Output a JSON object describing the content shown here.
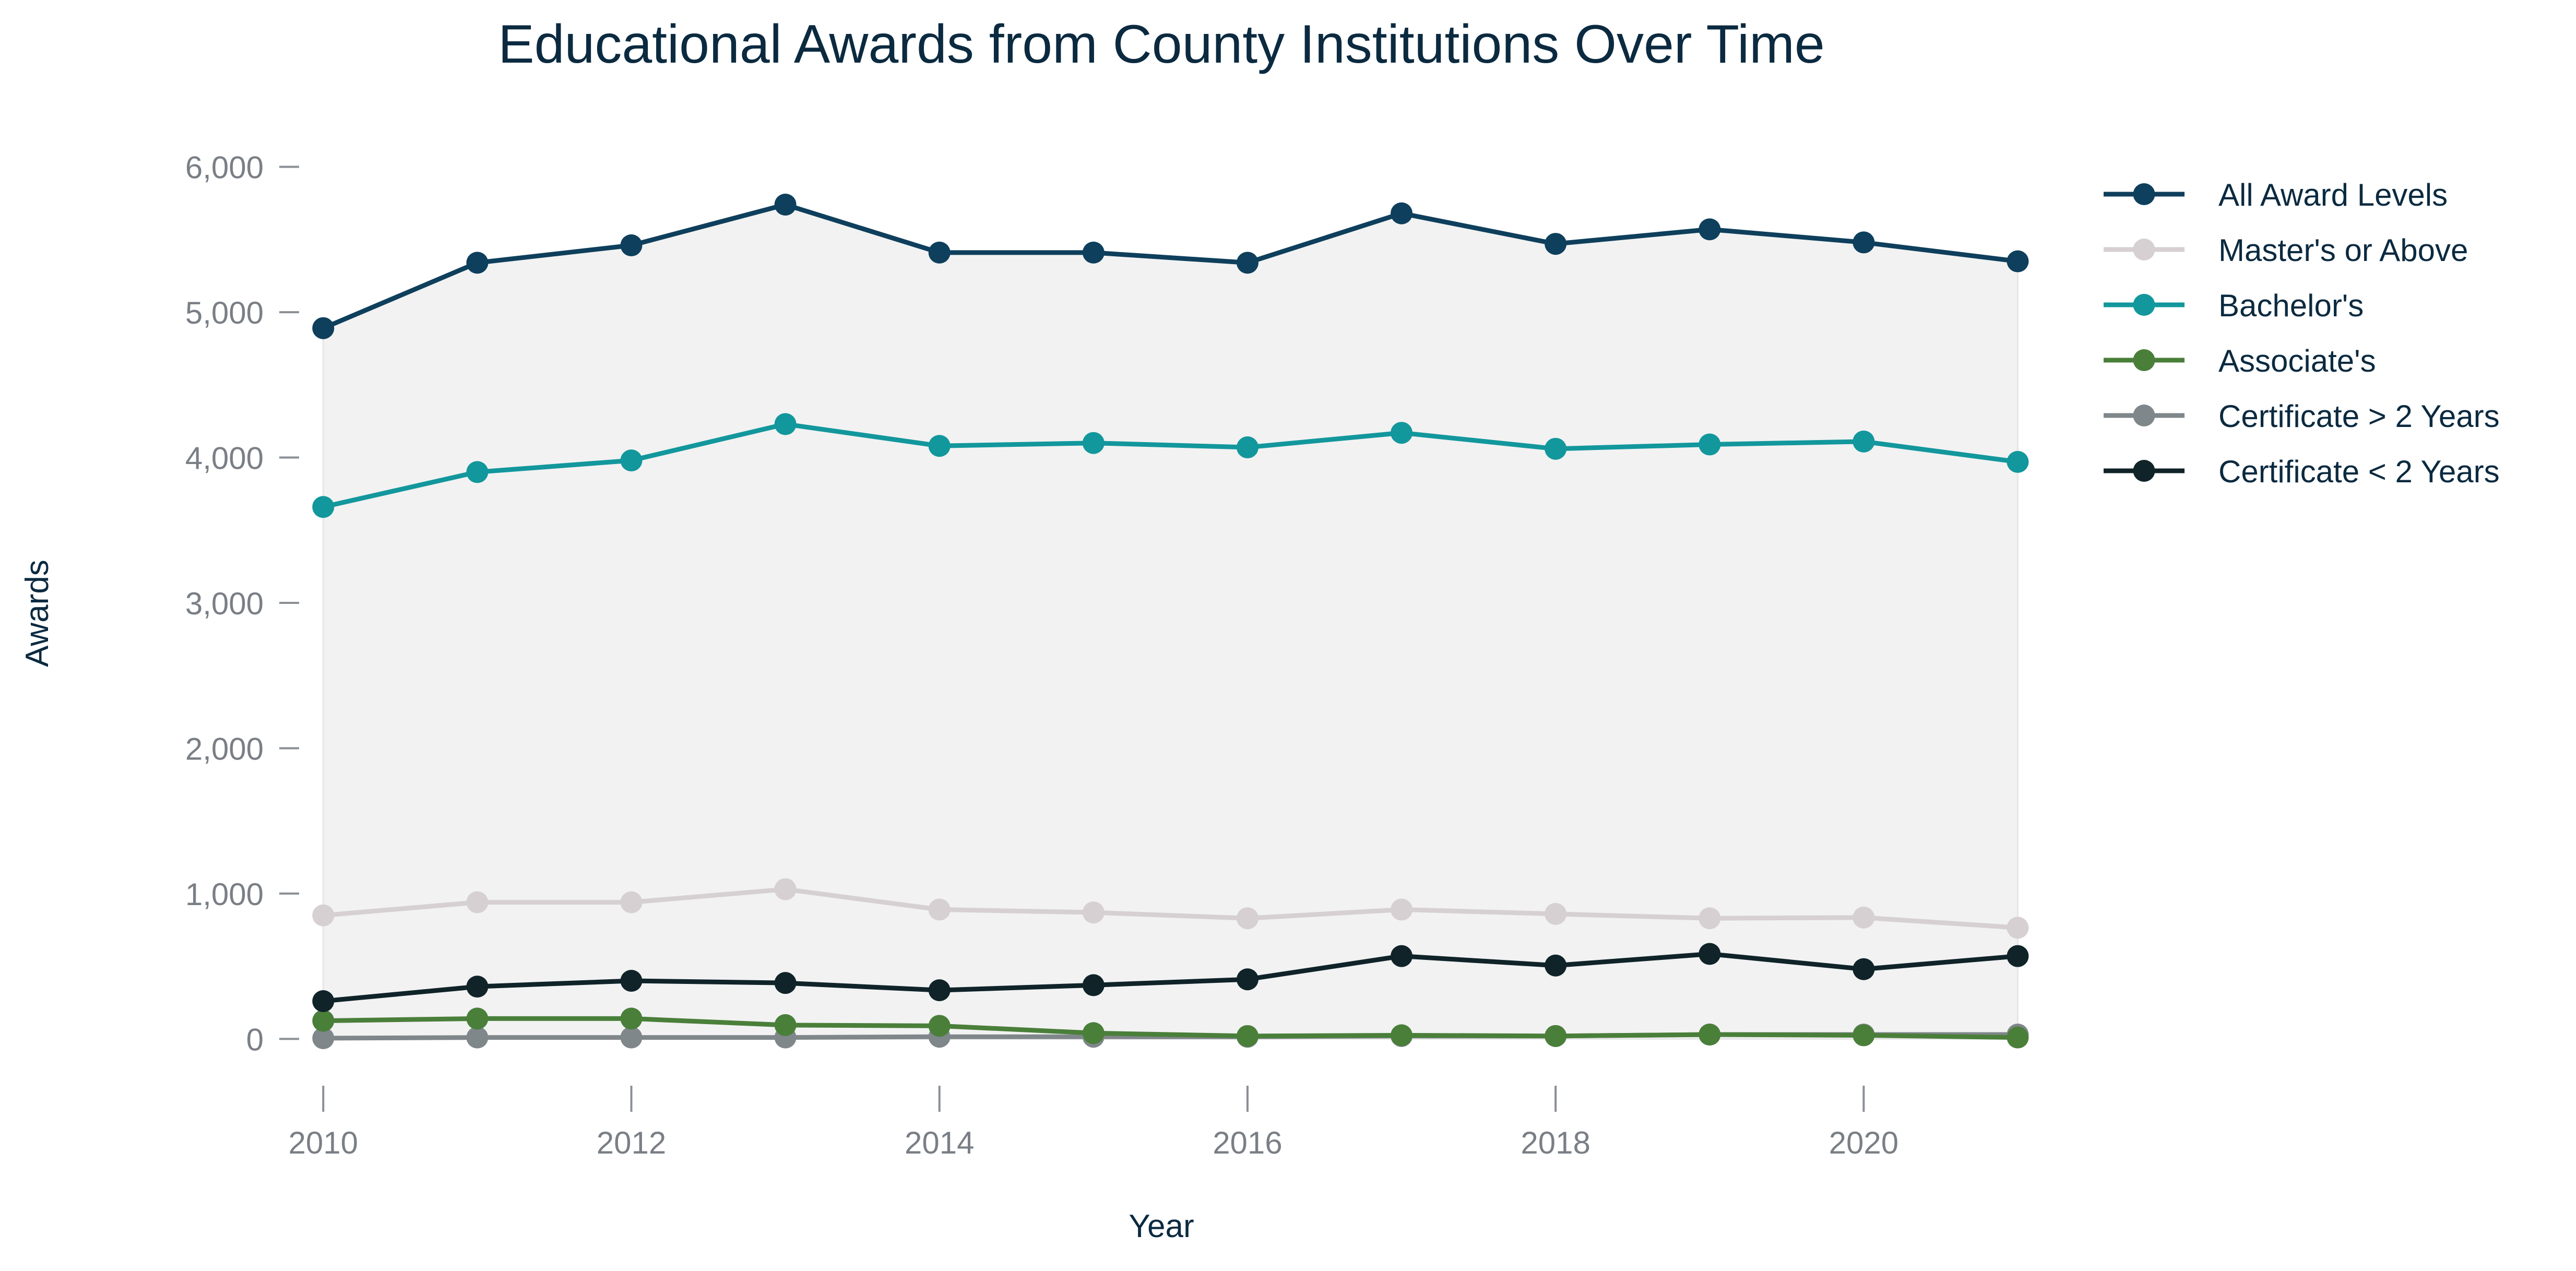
{
  "chart_data": {
    "type": "line",
    "title": "Educational Awards from County Institutions Over Time",
    "xlabel": "Year",
    "ylabel": "Awards",
    "x": [
      2010,
      2011,
      2012,
      2013,
      2014,
      2015,
      2016,
      2017,
      2018,
      2019,
      2020,
      2021
    ],
    "xticks": [
      2010,
      2012,
      2014,
      2016,
      2018,
      2020
    ],
    "xtick_labels": [
      "2010",
      "2012",
      "2014",
      "2016",
      "2018",
      "2020"
    ],
    "xlim": [
      2009.85,
      2021.1
    ],
    "yticks": [
      0,
      1000,
      2000,
      3000,
      4000,
      5000,
      6000
    ],
    "ytick_labels": [
      "0",
      "1,000",
      "2,000",
      "3,000",
      "4,000",
      "5,000",
      "6,000"
    ],
    "ylim": [
      -250,
      6250
    ],
    "grid": false,
    "legend_position": "right",
    "shaded_area_under": "All Award Levels",
    "shade_color": "#f2f2f2",
    "series": [
      {
        "name": "All Award Levels",
        "color": "#0e3f5c",
        "values": [
          4890,
          5340,
          5460,
          5740,
          5410,
          5410,
          5340,
          5680,
          5470,
          5570,
          5480,
          5350
        ]
      },
      {
        "name": "Master's or Above",
        "color": "#d6d0d2",
        "values": [
          850,
          940,
          940,
          1030,
          890,
          870,
          830,
          890,
          860,
          830,
          835,
          765
        ]
      },
      {
        "name": "Bachelor's",
        "color": "#12979c",
        "values": [
          3660,
          3900,
          3980,
          4230,
          4080,
          4100,
          4070,
          4170,
          4060,
          4090,
          4110,
          3970
        ]
      },
      {
        "name": "Associate's",
        "color": "#4a7f3a",
        "values": [
          125,
          140,
          140,
          95,
          90,
          40,
          20,
          25,
          20,
          30,
          25,
          10
        ]
      },
      {
        "name": "Certificate > 2 Years",
        "color": "#80878b",
        "values": [
          5,
          10,
          10,
          10,
          15,
          15,
          15,
          20,
          20,
          30,
          30,
          30
        ]
      },
      {
        "name": "Certificate < 2 Years",
        "color": "#0f2329",
        "values": [
          260,
          360,
          400,
          385,
          335,
          370,
          410,
          570,
          505,
          585,
          480,
          570
        ]
      }
    ]
  }
}
